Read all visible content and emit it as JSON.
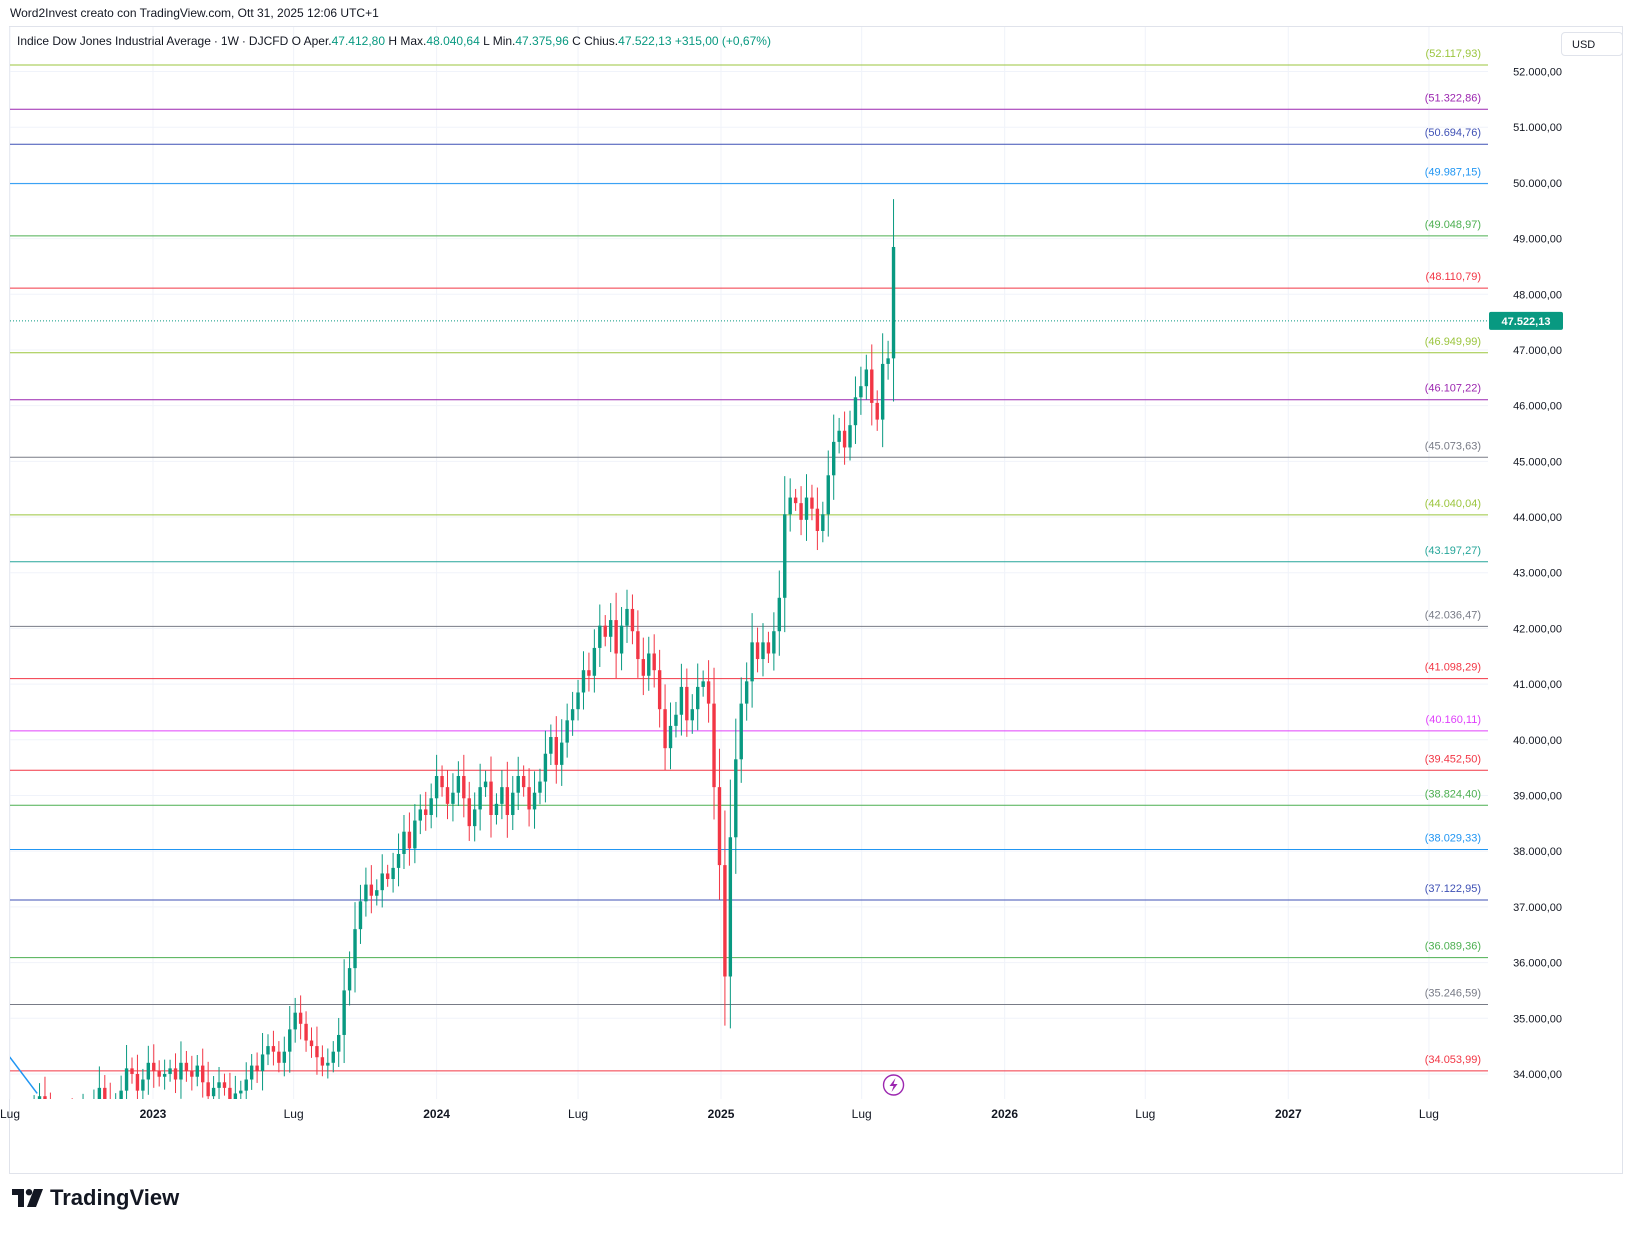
{
  "caption": "Word2Invest creato con TradingView.com, Ott 31, 2025 12:06 UTC+1",
  "legend": {
    "symbol": "Indice Dow Jones Industrial Average",
    "interval": "1W",
    "source": "DJCFD",
    "o_label": "O",
    "open_label": "Aper.",
    "open": "47.412,80",
    "h_label": "H",
    "high_label": "Max.",
    "high": "48.040,64",
    "l_label": "L",
    "low_label": "Min.",
    "low": "47.375,96",
    "c_label": "C",
    "close_label": "Chius.",
    "close": "47.522,13",
    "change": "+315,00 (+0,67%)"
  },
  "currency": "USD",
  "logo_text": "TradingView",
  "colors": {
    "up": "#089981",
    "down": "#f23645",
    "grid": "#f0f3fa",
    "text": "#131722",
    "axis_text": "#131722",
    "alert_icon": "#9c27b0"
  },
  "chart_data": {
    "type": "candlestick",
    "y_ticks": [
      34000,
      35000,
      36000,
      37000,
      38000,
      39000,
      40000,
      41000,
      42000,
      43000,
      44000,
      45000,
      46000,
      47000,
      48000,
      49000,
      50000,
      51000,
      52000
    ],
    "y_tick_labels": [
      "34.000,00",
      "35.000,00",
      "36.000,00",
      "37.000,00",
      "38.000,00",
      "39.000,00",
      "40.000,00",
      "41.000,00",
      "42.000,00",
      "43.000,00",
      "44.000,00",
      "45.000,00",
      "46.000,00",
      "47.000,00",
      "48.000,00",
      "49.000,00",
      "50.000,00",
      "51.000,00",
      "52.000,00"
    ],
    "ylim": [
      33550,
      52800
    ],
    "x_range": [
      "2022-07-01",
      "2027-09-15"
    ],
    "x_ticks": [
      {
        "date": "2022-07-01",
        "label": "Lug"
      },
      {
        "date": "2023-01-01",
        "label": "2023"
      },
      {
        "date": "2023-07-01",
        "label": "Lug"
      },
      {
        "date": "2024-01-01",
        "label": "2024"
      },
      {
        "date": "2024-07-01",
        "label": "Lug"
      },
      {
        "date": "2025-01-01",
        "label": "2025"
      },
      {
        "date": "2025-07-01",
        "label": "Lug"
      },
      {
        "date": "2026-01-01",
        "label": "2026"
      },
      {
        "date": "2026-07-01",
        "label": "Lug"
      },
      {
        "date": "2027-01-01",
        "label": "2027"
      },
      {
        "date": "2027-07-01",
        "label": "Lug"
      }
    ],
    "levels": [
      {
        "value": 52117.93,
        "label": "(52.117,93)",
        "color": "#9bc53d"
      },
      {
        "value": 51322.86,
        "label": "(51.322,86)",
        "color": "#9c27b0"
      },
      {
        "value": 50694.76,
        "label": "(50.694,76)",
        "color": "#3f51b5"
      },
      {
        "value": 49987.15,
        "label": "(49.987,15)",
        "color": "#2196f3"
      },
      {
        "value": 49048.97,
        "label": "(49.048,97)",
        "color": "#4caf50"
      },
      {
        "value": 48110.79,
        "label": "(48.110,79)",
        "color": "#f23645"
      },
      {
        "value": 46949.99,
        "label": "(46.949,99)",
        "color": "#9bc53d"
      },
      {
        "value": 46107.22,
        "label": "(46.107,22)",
        "color": "#9c27b0"
      },
      {
        "value": 45073.63,
        "label": "(45.073,63)",
        "color": "#787b86"
      },
      {
        "value": 44040.04,
        "label": "(44.040,04)",
        "color": "#9bc53d"
      },
      {
        "value": 43197.27,
        "label": "(43.197,27)",
        "color": "#26a69a"
      },
      {
        "value": 42036.47,
        "label": "(42.036,47)",
        "color": "#787b86"
      },
      {
        "value": 41098.29,
        "label": "(41.098,29)",
        "color": "#f23645"
      },
      {
        "value": 40160.11,
        "label": "(40.160,11)",
        "color": "#e040fb"
      },
      {
        "value": 39452.5,
        "label": "(39.452,50)",
        "color": "#f23645"
      },
      {
        "value": 38824.4,
        "label": "(38.824,40)",
        "color": "#4caf50"
      },
      {
        "value": 38029.33,
        "label": "(38.029,33)",
        "color": "#2196f3"
      },
      {
        "value": 37122.95,
        "label": "(37.122,95)",
        "color": "#3f51b5"
      },
      {
        "value": 36089.36,
        "label": "(36.089,36)",
        "color": "#4caf50"
      },
      {
        "value": 35246.59,
        "label": "(35.246,59)",
        "color": "#787b86"
      },
      {
        "value": 34053.99,
        "label": "(34.053,99)",
        "color": "#f23645"
      }
    ],
    "last_price": {
      "value": 47522.13,
      "label": "47.522,13",
      "color": "#089981"
    },
    "trend_line": {
      "from": {
        "date": "2022-06-20",
        "value": 34500
      },
      "to": {
        "date": "2022-08-05",
        "value": 33650
      },
      "color": "#2196f3"
    },
    "candles": {
      "start_date": "2022-08-01",
      "interval_days": 7,
      "first_open": 33500,
      "weekly_changes": [
        0,
        100,
        -200,
        -300,
        -150,
        100,
        200,
        -100,
        50,
        150,
        -100,
        200,
        300,
        -200,
        -150,
        100,
        200,
        400,
        -100,
        -300,
        200,
        300,
        -150,
        -100,
        50,
        100,
        -200,
        300,
        -150,
        -100,
        200,
        -300,
        -250,
        150,
        100,
        -100,
        -200,
        100,
        50,
        200,
        250,
        -100,
        300,
        150,
        -100,
        -200,
        200,
        400,
        300,
        -200,
        -300,
        -100,
        -200,
        -150,
        50,
        200,
        300,
        800,
        400,
        700,
        500,
        300,
        -200,
        100,
        300,
        -100,
        200,
        250,
        400,
        -300,
        500,
        200,
        -100,
        300,
        400,
        -200,
        -300,
        200,
        300,
        -400,
        -500,
        300,
        400,
        100,
        -600,
        200,
        300,
        -500,
        400,
        300,
        -200,
        -400,
        300,
        200,
        500,
        300,
        -500,
        400,
        400,
        200,
        300,
        400,
        -100,
        500,
        400,
        -200,
        300,
        -600,
        500,
        300,
        -400,
        -500,
        -300,
        400,
        -300,
        -700,
        -700,
        400,
        200,
        500,
        -600,
        200,
        400,
        100,
        -400,
        -1500,
        -1400,
        -2000,
        2500,
        1400,
        1000,
        400,
        700,
        -300,
        300,
        -200,
        400,
        600,
        1500,
        300,
        -100,
        -300,
        400,
        -200,
        -400,
        300,
        700,
        600,
        200,
        -300,
        400,
        500,
        200,
        300,
        -600,
        -300,
        1000,
        100,
        2000
      ]
    }
  }
}
